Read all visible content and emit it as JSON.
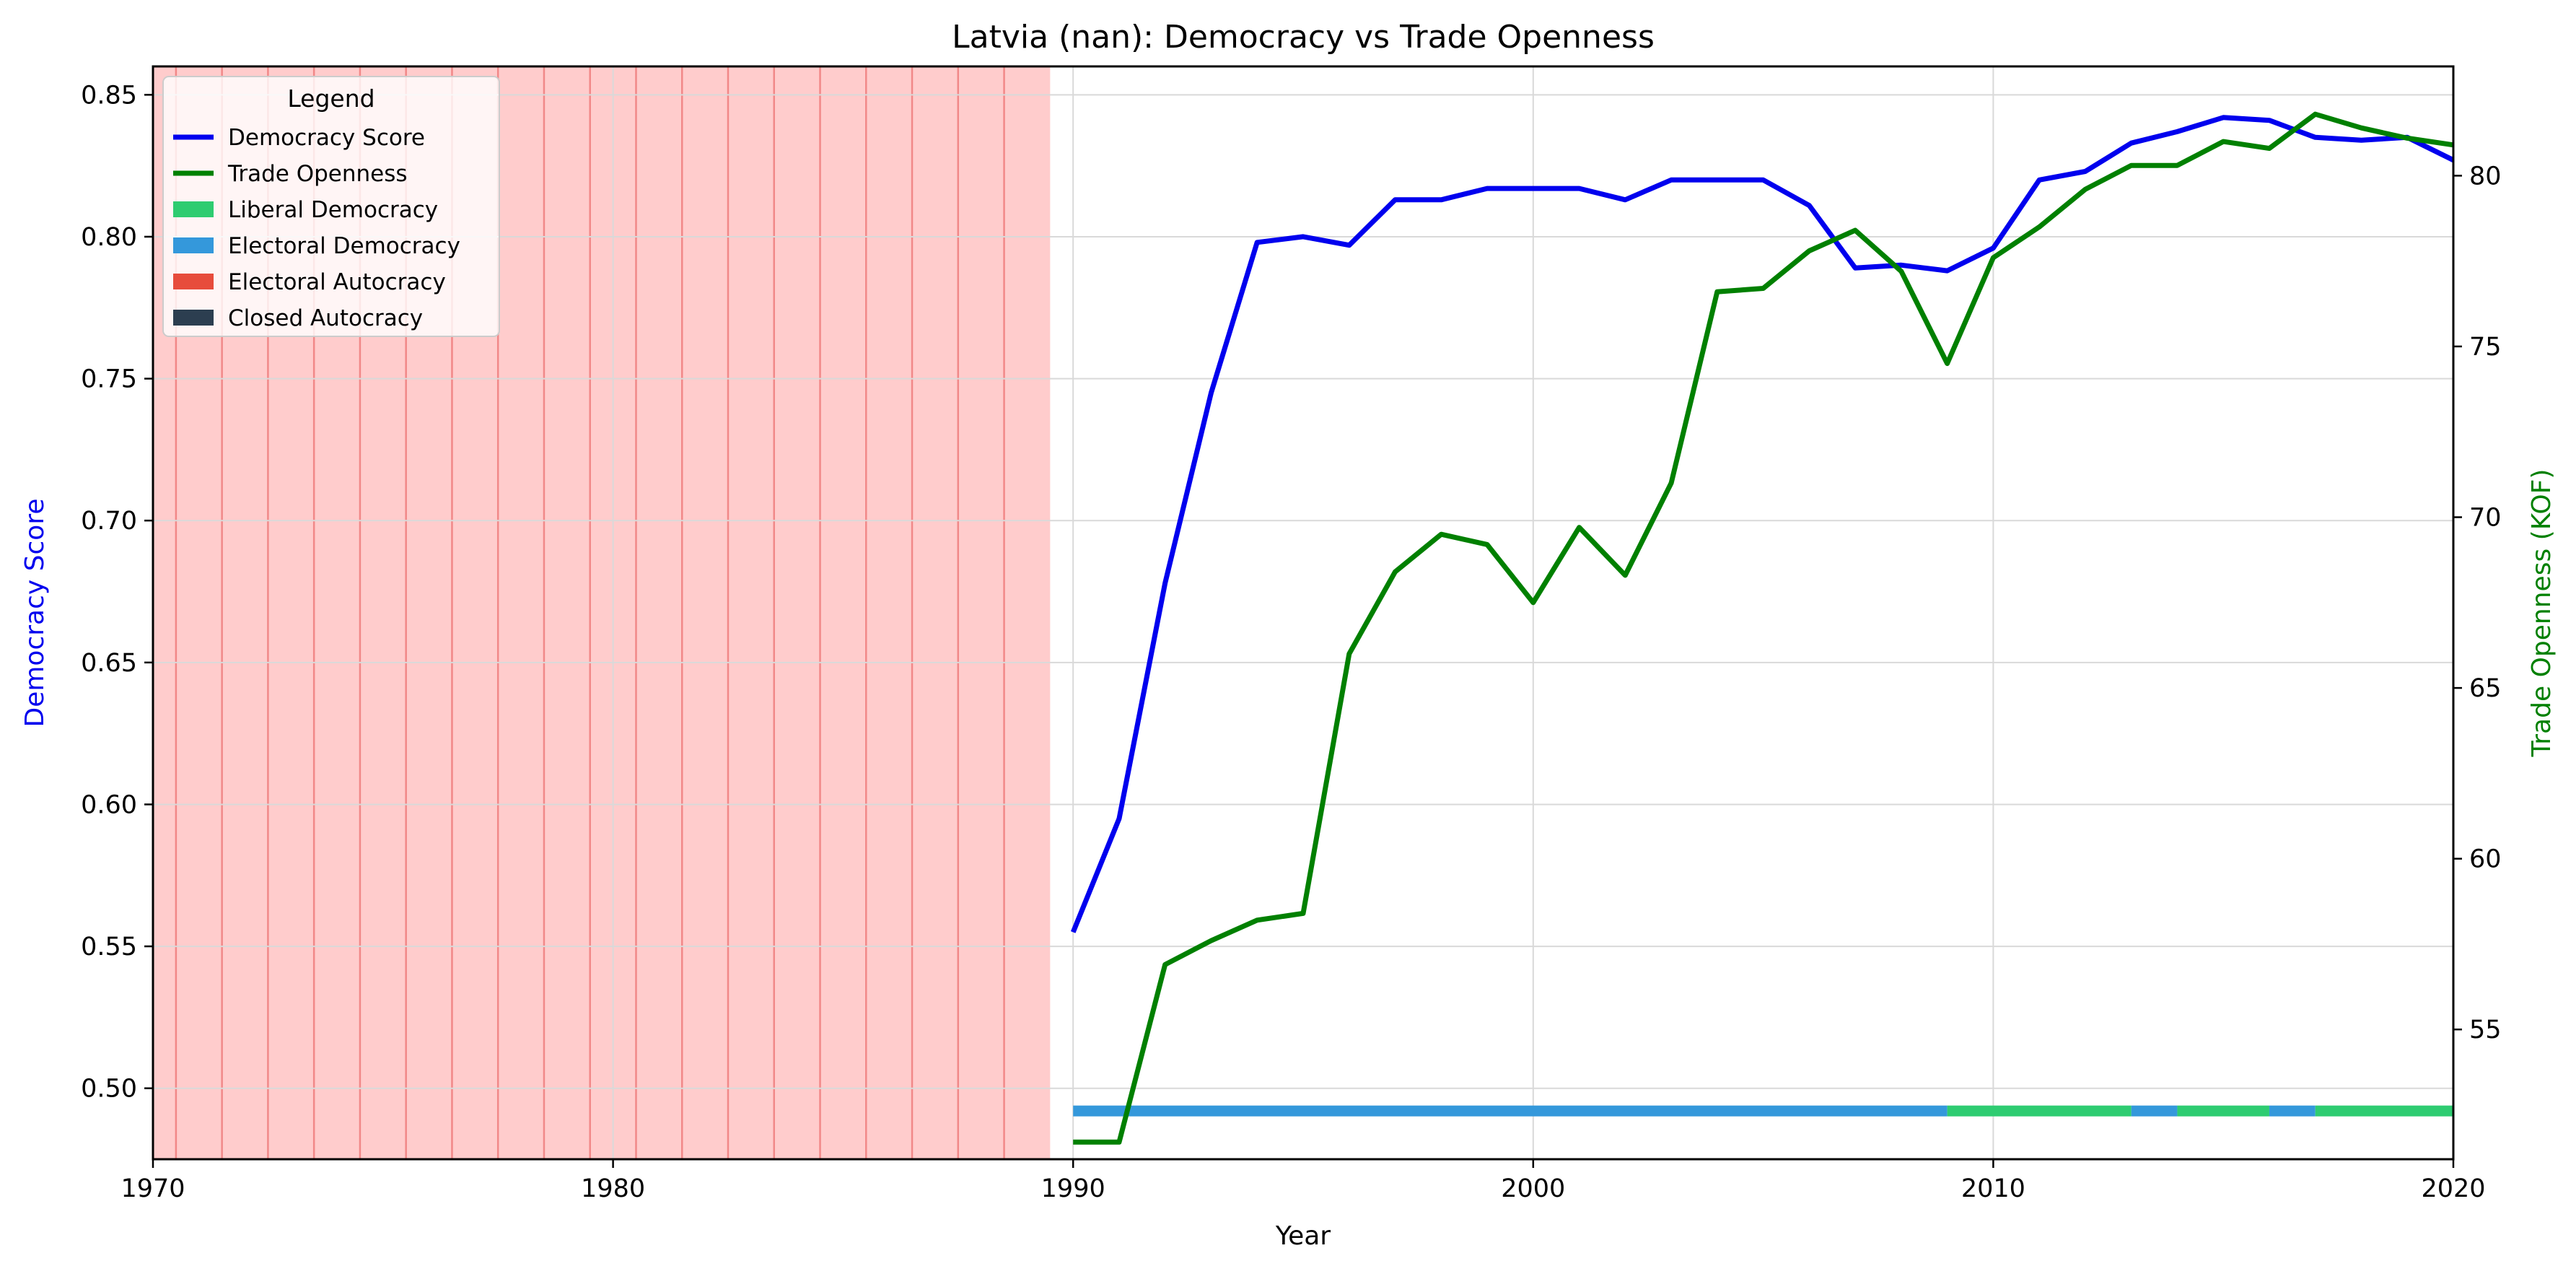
{
  "chart_data": {
    "type": "line",
    "title": "Latvia (nan): Democracy vs Trade Openness",
    "xlabel": "Year",
    "ylabel_left": "Democracy Score",
    "ylabel_right": "Trade Openness (KOF)",
    "xlim": [
      1970,
      2020
    ],
    "ylim_left": [
      0.475,
      0.86
    ],
    "ylim_right": [
      51.2,
      83.2
    ],
    "x_ticks": [
      1970,
      1980,
      1990,
      2000,
      2010,
      2020
    ],
    "y_ticks_left": [
      0.5,
      0.55,
      0.6,
      0.65,
      0.7,
      0.75,
      0.8,
      0.85
    ],
    "y_ticks_right": [
      55,
      60,
      65,
      70,
      75,
      80
    ],
    "grid": true,
    "legend": {
      "title": "Legend",
      "placement": "top-left",
      "entries": [
        {
          "label": "Democracy Score",
          "kind": "line",
          "color": "#0000ee"
        },
        {
          "label": "Trade Openness",
          "kind": "line",
          "color": "#008000"
        },
        {
          "label": "Liberal Democracy",
          "kind": "patch",
          "color": "#2ecc71"
        },
        {
          "label": "Electoral Democracy",
          "kind": "patch",
          "color": "#3498db"
        },
        {
          "label": "Electoral Autocracy",
          "kind": "patch",
          "color": "#e74c3c"
        },
        {
          "label": "Closed Autocracy",
          "kind": "patch",
          "color": "#2c3e50"
        }
      ]
    },
    "shaded_region": {
      "start": 1970,
      "end": 1989.5,
      "color": "#ff9999",
      "line_color": "#ee7777"
    },
    "series": [
      {
        "name": "Democracy Score",
        "axis": "left",
        "color": "#0000ee",
        "x": [
          1990,
          1991,
          1992,
          1993,
          1994,
          1995,
          1996,
          1997,
          1998,
          1999,
          2000,
          2001,
          2002,
          2003,
          2004,
          2005,
          2006,
          2007,
          2008,
          2009,
          2010,
          2011,
          2012,
          2013,
          2014,
          2015,
          2016,
          2017,
          2018,
          2019,
          2020
        ],
        "y": [
          0.555,
          0.595,
          0.678,
          0.745,
          0.798,
          0.8,
          0.797,
          0.813,
          0.813,
          0.817,
          0.817,
          0.817,
          0.813,
          0.82,
          0.82,
          0.82,
          0.811,
          0.789,
          0.79,
          0.788,
          0.796,
          0.82,
          0.823,
          0.833,
          0.837,
          0.842,
          0.841,
          0.835,
          0.834,
          0.835,
          0.827
        ]
      },
      {
        "name": "Trade Openness",
        "axis": "right",
        "color": "#008000",
        "x": [
          1990,
          1991,
          1992,
          1993,
          1994,
          1995,
          1996,
          1997,
          1998,
          1999,
          2000,
          2001,
          2002,
          2003,
          2004,
          2005,
          2006,
          2007,
          2008,
          2009,
          2010,
          2011,
          2012,
          2013,
          2014,
          2015,
          2016,
          2017,
          2018,
          2019,
          2020
        ],
        "y": [
          51.7,
          51.7,
          56.9,
          57.6,
          58.2,
          58.4,
          66.0,
          68.4,
          69.5,
          69.2,
          67.5,
          69.7,
          68.3,
          71.0,
          76.6,
          76.7,
          77.8,
          78.4,
          77.2,
          74.5,
          77.6,
          78.5,
          79.6,
          80.3,
          80.3,
          81.0,
          80.8,
          81.8,
          81.4,
          81.1,
          80.9
        ]
      }
    ],
    "regime_bar": {
      "y_value": 0.492,
      "segments": [
        {
          "start": 1990,
          "end": 2009,
          "regime": "Electoral Democracy",
          "color": "#3498db"
        },
        {
          "start": 2009,
          "end": 2013,
          "regime": "Liberal Democracy",
          "color": "#2ecc71"
        },
        {
          "start": 2013,
          "end": 2014,
          "regime": "Electoral Democracy",
          "color": "#3498db"
        },
        {
          "start": 2014,
          "end": 2016,
          "regime": "Liberal Democracy",
          "color": "#2ecc71"
        },
        {
          "start": 2016,
          "end": 2017,
          "regime": "Electoral Democracy",
          "color": "#3498db"
        },
        {
          "start": 2017,
          "end": 2020,
          "regime": "Liberal Democracy",
          "color": "#2ecc71"
        }
      ]
    }
  }
}
